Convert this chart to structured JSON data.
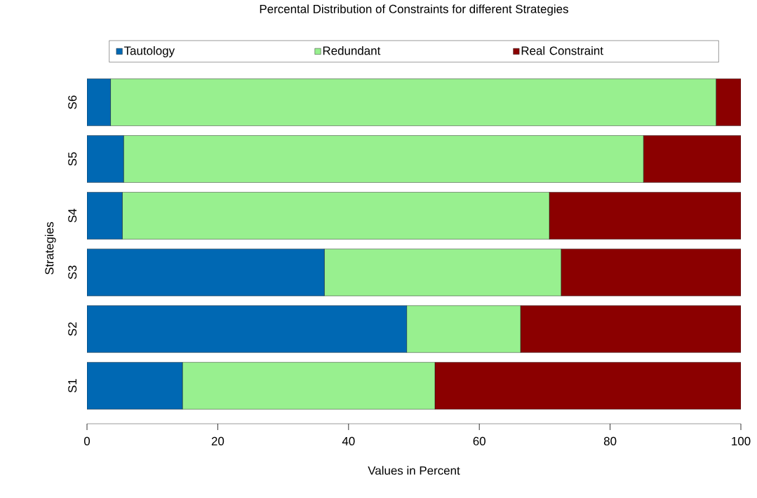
{
  "chart_data": {
    "type": "bar",
    "orientation": "horizontal",
    "stacked": true,
    "title": "Percental Distribution of Constraints for different Strategies",
    "xlabel": "Values in Percent",
    "ylabel": "Strategies",
    "categories": [
      "S6",
      "S5",
      "S4",
      "S3",
      "S2",
      "S1"
    ],
    "series": [
      {
        "name": "Tautology",
        "color": "#0068b3",
        "values": [
          3.6,
          5.6,
          5.4,
          36.3,
          48.9,
          14.6
        ]
      },
      {
        "name": "Redundant",
        "color": "#98f08f",
        "values": [
          92.6,
          79.5,
          65.3,
          36.2,
          17.4,
          38.6
        ]
      },
      {
        "name": "Real Constraint",
        "color": "#8b0000",
        "values": [
          3.8,
          14.9,
          29.3,
          27.5,
          33.7,
          46.8
        ]
      }
    ],
    "xlim": [
      0,
      100
    ],
    "xticks": [
      0,
      20,
      40,
      60,
      80,
      100
    ],
    "legend": "top"
  }
}
